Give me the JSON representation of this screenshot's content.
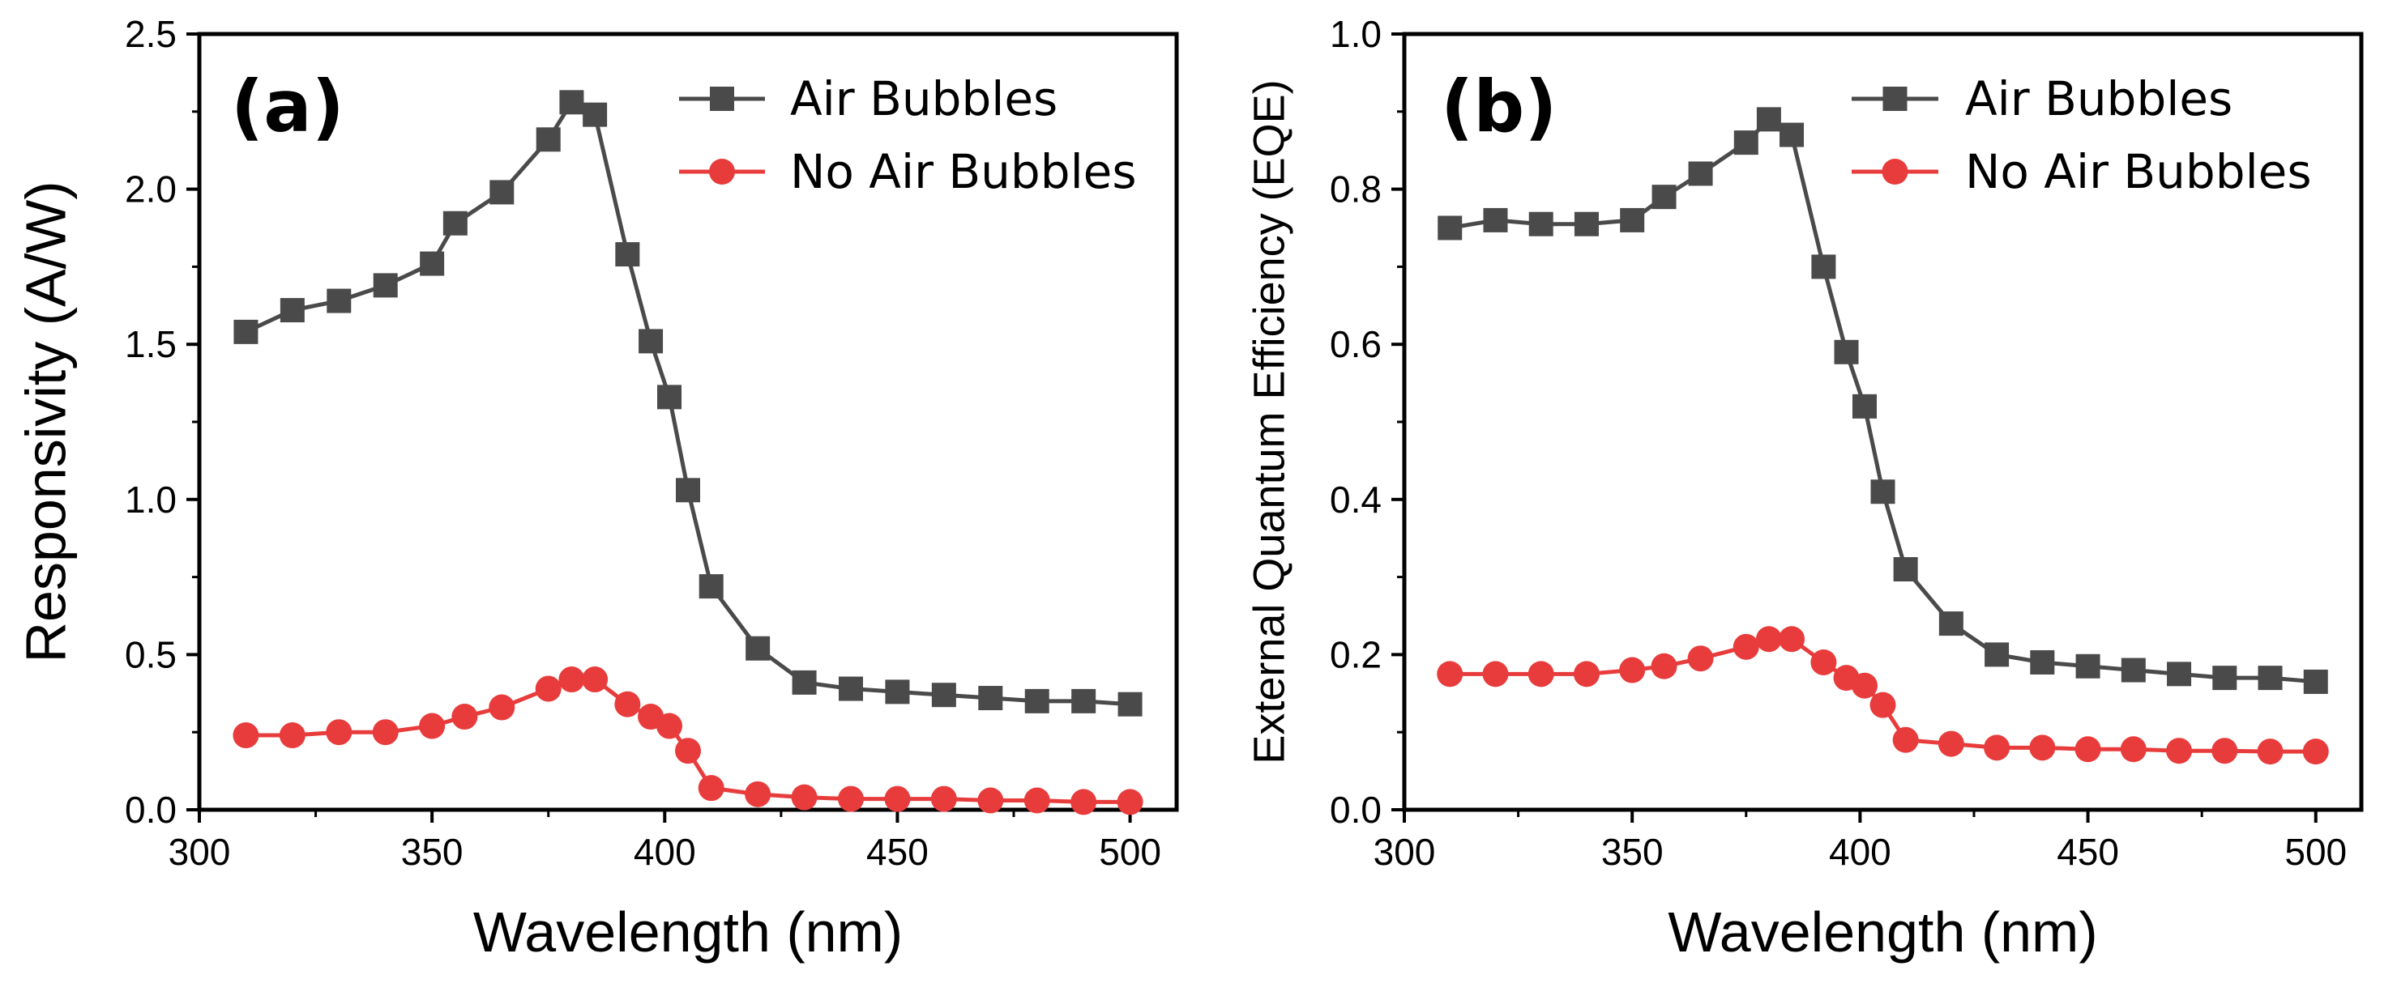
{
  "chart_data": [
    {
      "type": "line",
      "panel_label": "(a)",
      "xlabel": "Wavelength (nm)",
      "ylabel": "Responsivity (A/W)",
      "xlim": [
        300,
        510
      ],
      "ylim": [
        0,
        2.5
      ],
      "xticks": [
        "300",
        "350",
        "400",
        "450",
        "500"
      ],
      "yticks": [
        "0.0",
        "0.5",
        "1.0",
        "1.5",
        "2.0",
        "2.5"
      ],
      "legend_position": "top-right",
      "series": [
        {
          "name": "Air Bubbles",
          "color": "#4a4a4a",
          "marker": "square",
          "x": [
            310,
            320,
            330,
            340,
            350,
            355,
            365,
            375,
            380,
            385,
            392,
            397,
            401,
            405,
            410,
            420,
            430,
            440,
            450,
            460,
            470,
            480,
            490,
            500
          ],
          "y": [
            1.54,
            1.61,
            1.64,
            1.69,
            1.76,
            1.89,
            1.99,
            2.16,
            2.28,
            2.24,
            1.79,
            1.51,
            1.33,
            1.03,
            0.72,
            0.52,
            0.41,
            0.39,
            0.38,
            0.37,
            0.36,
            0.35,
            0.35,
            0.34
          ]
        },
        {
          "name": "No Air Bubbles",
          "color": "#e83c3c",
          "marker": "circle",
          "x": [
            310,
            320,
            330,
            340,
            350,
            357,
            365,
            375,
            380,
            385,
            392,
            397,
            401,
            405,
            410,
            420,
            430,
            440,
            450,
            460,
            470,
            480,
            490,
            500
          ],
          "y": [
            0.24,
            0.24,
            0.25,
            0.25,
            0.27,
            0.3,
            0.33,
            0.39,
            0.42,
            0.42,
            0.34,
            0.3,
            0.27,
            0.19,
            0.07,
            0.05,
            0.04,
            0.035,
            0.035,
            0.035,
            0.03,
            0.03,
            0.025,
            0.025
          ]
        }
      ]
    },
    {
      "type": "line",
      "panel_label": "(b)",
      "xlabel": "Wavelength (nm)",
      "ylabel": "External Quantum Efficiency (EQE)",
      "xlim": [
        300,
        510
      ],
      "ylim": [
        0,
        1.0
      ],
      "xticks": [
        "300",
        "350",
        "400",
        "450",
        "500"
      ],
      "yticks": [
        "0.0",
        "0.2",
        "0.4",
        "0.6",
        "0.8",
        "1.0"
      ],
      "legend_position": "top-right",
      "series": [
        {
          "name": "Air Bubbles",
          "color": "#4a4a4a",
          "marker": "square",
          "x": [
            310,
            320,
            330,
            340,
            350,
            357,
            365,
            375,
            380,
            385,
            392,
            397,
            401,
            405,
            410,
            420,
            430,
            440,
            450,
            460,
            470,
            480,
            490,
            500
          ],
          "y": [
            0.75,
            0.76,
            0.755,
            0.755,
            0.76,
            0.79,
            0.82,
            0.86,
            0.89,
            0.87,
            0.7,
            0.59,
            0.52,
            0.41,
            0.31,
            0.24,
            0.2,
            0.19,
            0.185,
            0.18,
            0.175,
            0.17,
            0.17,
            0.165
          ]
        },
        {
          "name": "No Air Bubbles",
          "color": "#e83c3c",
          "marker": "circle",
          "x": [
            310,
            320,
            330,
            340,
            350,
            357,
            365,
            375,
            380,
            385,
            392,
            397,
            401,
            405,
            410,
            420,
            430,
            440,
            450,
            460,
            470,
            480,
            490,
            500
          ],
          "y": [
            0.175,
            0.175,
            0.175,
            0.175,
            0.18,
            0.185,
            0.195,
            0.21,
            0.22,
            0.22,
            0.19,
            0.17,
            0.16,
            0.135,
            0.09,
            0.085,
            0.08,
            0.08,
            0.078,
            0.078,
            0.076,
            0.076,
            0.075,
            0.075
          ]
        }
      ]
    }
  ]
}
